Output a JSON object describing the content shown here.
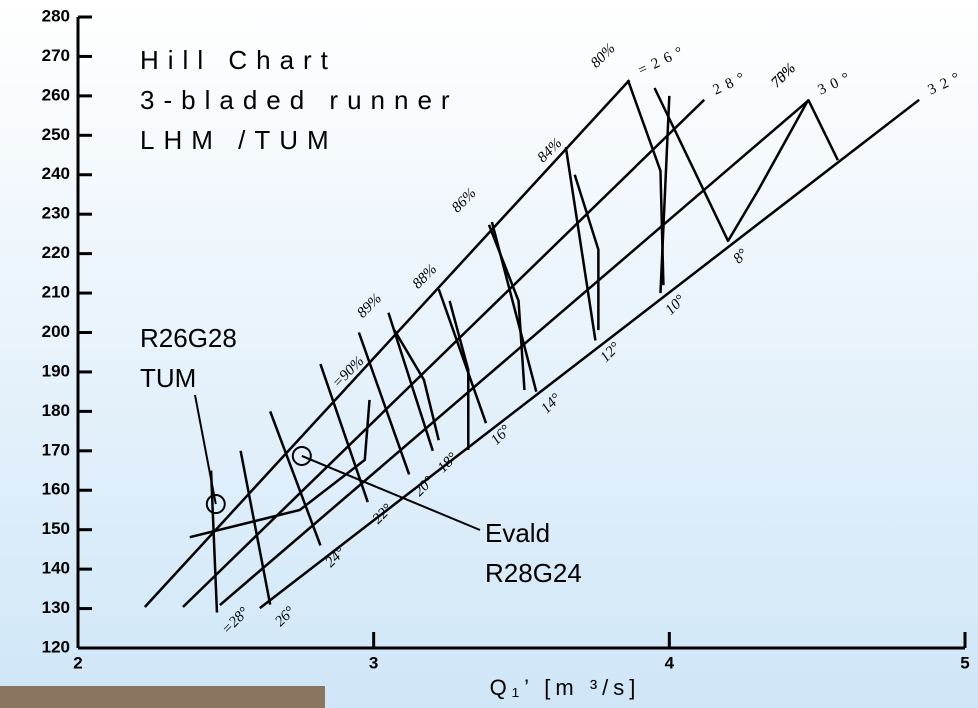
{
  "chart_data": {
    "type": "hill",
    "title_lines": [
      "Hill Chart",
      "3-bladed runner",
      "LHM /TUM"
    ],
    "x_label": "Q₁’  [m ³/s]",
    "xlim": [
      2,
      5
    ],
    "xticks": [
      2,
      3,
      4,
      5
    ],
    "ylim": [
      120,
      280
    ],
    "yticks": [
      120,
      130,
      140,
      150,
      160,
      170,
      180,
      190,
      200,
      210,
      220,
      230,
      240,
      250,
      260,
      270,
      280
    ],
    "blade_lines": [
      {
        "name": "=26°",
        "x": [
          2.226,
          3.865
        ],
        "y": [
          130.4,
          264
        ]
      },
      {
        "name": "28°",
        "x": [
          2.355,
          4.118
        ],
        "y": [
          130.4,
          259
        ]
      },
      {
        "name": "30°",
        "x": [
          2.48,
          4.473
        ],
        "y": [
          130.9,
          259
        ]
      },
      {
        "name": "32°",
        "x": [
          2.615,
          4.845
        ],
        "y": [
          130.1,
          259
        ]
      }
    ],
    "guide_vane_lines": [
      {
        "name": "8°",
        "x": [
          4.2,
          3.95
        ],
        "y": [
          223,
          262
        ]
      },
      {
        "name": "10°",
        "x": [
          3.97,
          4.0
        ],
        "y": [
          210,
          260
        ]
      },
      {
        "name": "12°",
        "x": [
          3.75,
          3.65
        ],
        "y": [
          198,
          247
        ]
      },
      {
        "name": "14°",
        "x": [
          3.55,
          3.4
        ],
        "y": [
          185,
          228
        ]
      },
      {
        "name": "16°",
        "x": [
          3.38,
          3.22
        ],
        "y": [
          177,
          211
        ]
      },
      {
        "name": "18°",
        "x": [
          3.2,
          3.05
        ],
        "y": [
          170,
          205
        ]
      },
      {
        "name": "20°",
        "x": [
          3.12,
          2.95
        ],
        "y": [
          164,
          200
        ]
      },
      {
        "name": "22°",
        "x": [
          2.98,
          2.82
        ],
        "y": [
          157,
          192
        ]
      },
      {
        "name": "24°",
        "x": [
          2.82,
          2.65
        ],
        "y": [
          146,
          180
        ]
      },
      {
        "name": "26°",
        "x": [
          2.65,
          2.55
        ],
        "y": [
          131,
          170
        ]
      },
      {
        "name": "=28°",
        "x": [
          2.47,
          2.45
        ],
        "y": [
          129,
          165
        ]
      }
    ],
    "efficiency_contours": [
      {
        "name": "=90%",
        "x": [
          2.986,
          2.97,
          2.75,
          2.378
        ],
        "y": [
          182.9,
          167.7,
          155,
          148.1
        ]
      },
      {
        "name": "89%",
        "x": [
          3.07,
          3.17,
          3.22
        ],
        "y": [
          200.6,
          188,
          172.7
        ]
      },
      {
        "name": "88%",
        "x": [
          3.257,
          3.32,
          3.32
        ],
        "y": [
          208,
          190.5,
          170.2
        ]
      },
      {
        "name": "86%",
        "x": [
          3.39,
          3.49,
          3.51
        ],
        "y": [
          227.3,
          208,
          185.4
        ]
      },
      {
        "name": "84%",
        "x": [
          3.68,
          3.76,
          3.76
        ],
        "y": [
          240,
          221,
          200.6
        ]
      },
      {
        "name": "80%",
        "x": [
          3.86,
          3.97,
          3.98
        ],
        "y": [
          264,
          241,
          212
        ]
      },
      {
        "name": "75%",
        "x": [
          4.47,
          4.3,
          4.2
        ],
        "y": [
          259,
          236,
          223.4
        ]
      },
      {
        "name": "70%",
        "x": [
          4.47,
          4.57
        ],
        "y": [
          259,
          243.7
        ]
      }
    ],
    "points": [
      {
        "label_lines": [
          "R26G28",
          "TUM"
        ],
        "x": 2.466,
        "y": 156.5
      },
      {
        "label_lines": [
          "Evald",
          "R28G24"
        ],
        "x": 2.757,
        "y": 168.7
      }
    ]
  }
}
